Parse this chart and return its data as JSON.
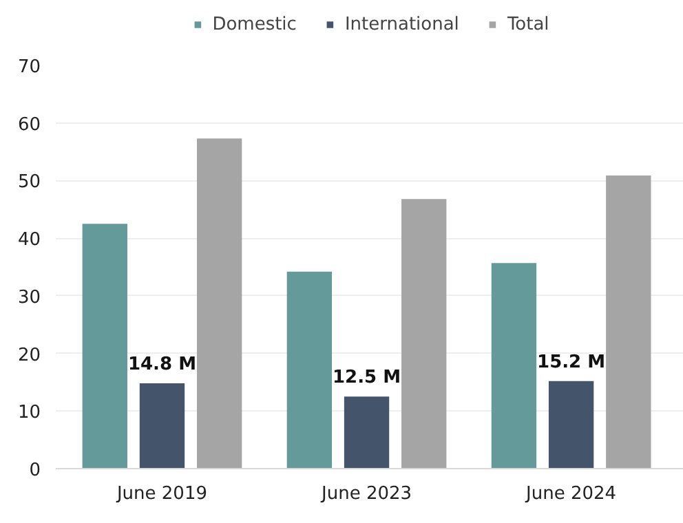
{
  "chart_data": {
    "type": "bar",
    "categories": [
      "June 2019",
      "June 2023",
      "June 2024"
    ],
    "series": [
      {
        "name": "Domestic",
        "color": "#659a9a",
        "values": [
          42.5,
          34.2,
          35.7
        ]
      },
      {
        "name": "International",
        "color": "#44546a",
        "values": [
          14.8,
          12.5,
          15.2
        ],
        "value_labels": [
          "14.8 M",
          "12.5 M",
          "15.2 M"
        ]
      },
      {
        "name": "Total",
        "color": "#a5a5a5",
        "values": [
          57.3,
          46.8,
          50.9
        ]
      }
    ],
    "ylim": [
      0,
      70
    ],
    "yticks": [
      0,
      10,
      20,
      30,
      40,
      50,
      60,
      70
    ],
    "grid": "y",
    "legend": "top"
  }
}
